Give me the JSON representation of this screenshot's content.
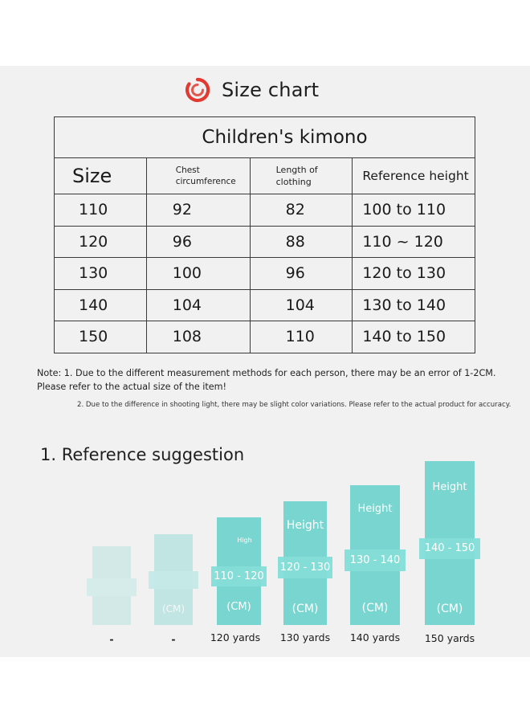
{
  "header": {
    "title": "Size chart",
    "icon": "red-ring-icon",
    "accent": "#e03a33"
  },
  "table": {
    "title": "Children's kimono",
    "columns": [
      "Size",
      "Chest circumference",
      "Length of clothing",
      "Reference height"
    ],
    "rows": [
      [
        "110",
        "92",
        "82",
        "100 to 110"
      ],
      [
        "120",
        "96",
        "88",
        "110 ~ 120"
      ],
      [
        "130",
        "100",
        "96",
        "120 to 130"
      ],
      [
        "140",
        "104",
        "104",
        "130 to 140"
      ],
      [
        "150",
        "108",
        "110",
        "140 to 150"
      ]
    ]
  },
  "notes": {
    "note1": "Note: 1. Due to the different measurement methods for each person, there may be an error of 1-2CM. Please refer to the actual size of the item!",
    "note2": "2. Due to the difference in shooting light, there may be slight color variations. Please refer to the actual product for accuracy."
  },
  "suggestion": {
    "title": "1. Reference suggestion",
    "bars": [
      {
        "label": "-",
        "height_text": "",
        "range": "",
        "unit": ""
      },
      {
        "label": "-",
        "height_text": "",
        "range": "",
        "unit": "(CM)"
      },
      {
        "label": "120 yards",
        "height_text": "High",
        "range": "110 - 120",
        "unit": "(CM)"
      },
      {
        "label": "130 yards",
        "height_text": "Height",
        "range": "120 - 130",
        "unit": "(CM)"
      },
      {
        "label": "140 yards",
        "height_text": "Height",
        "range": "130 - 140",
        "unit": "(CM)"
      },
      {
        "label": "150 yards",
        "height_text": "Height",
        "range": "140 - 150",
        "unit": "(CM)"
      }
    ],
    "bar_color": "#79d5cf"
  }
}
